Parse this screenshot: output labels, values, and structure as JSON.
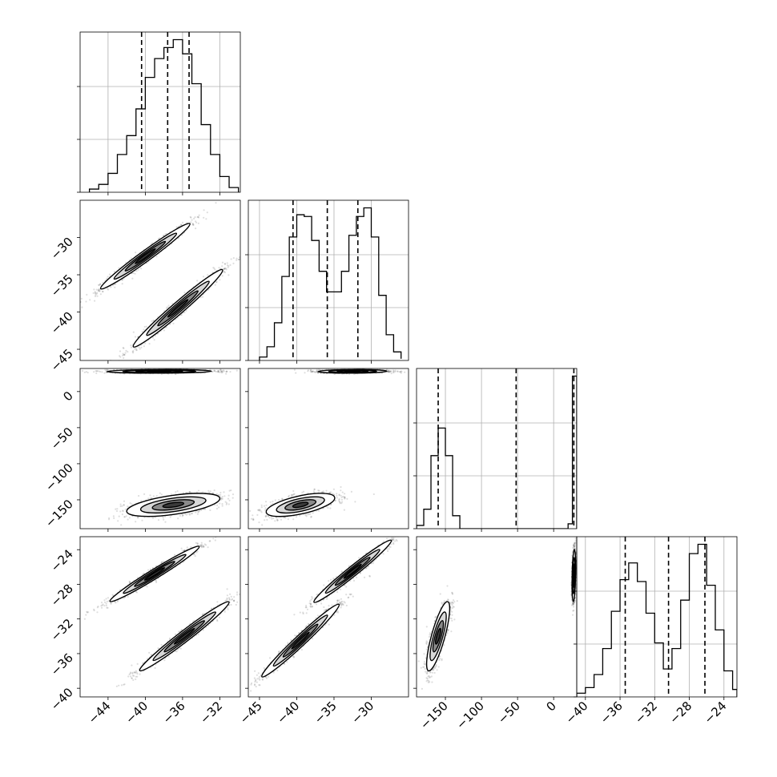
{
  "chart_data": {
    "type": "corner",
    "title": "",
    "grid": true,
    "variables": [
      {
        "name": "",
        "range": [
          -47,
          -29.8
        ],
        "ticks": [
          -44,
          -40,
          -36,
          -32
        ],
        "tick_labels": [
          "−44",
          "−40",
          "−36",
          "−32"
        ],
        "quantiles": [
          -40.4,
          -37.6,
          -35.3
        ]
      },
      {
        "name": "",
        "range": [
          -46.5,
          -25
        ],
        "ticks": [
          -45,
          -40,
          -35,
          -30
        ],
        "tick_labels": [
          "−45",
          "−40",
          "−35",
          "−30"
        ],
        "quantiles": [
          -40.5,
          -35.9,
          -31.8
        ]
      },
      {
        "name": "",
        "range": [
          -190,
          32
        ],
        "ticks": [
          -150,
          -100,
          -50,
          0
        ],
        "tick_labels": [
          "−150",
          "−100",
          "−50",
          "0"
        ],
        "quantiles": [
          -160,
          -52,
          28
        ]
      },
      {
        "name": "",
        "range": [
          -41,
          -22.5
        ],
        "ticks": [
          -40,
          -36,
          -32,
          -28,
          -24
        ],
        "tick_labels": [
          "−40",
          "−36",
          "−32",
          "−28",
          "−24"
        ],
        "quantiles": [
          -35.4,
          -30.4,
          -26.2
        ]
      }
    ],
    "histograms": [
      {
        "variable": 0,
        "bin_edges": [
          -46,
          -45,
          -44,
          -43,
          -42,
          -41,
          -40,
          -39,
          -38,
          -37,
          -36,
          -35,
          -34,
          -33,
          -32,
          -31,
          -30
        ],
        "counts": [
          2,
          5,
          12,
          24,
          36,
          53,
          73,
          85,
          92,
          97,
          88,
          69,
          43,
          24,
          10,
          3
        ]
      },
      {
        "variable": 1,
        "bin_edges": [
          -45,
          -44,
          -43,
          -42,
          -41,
          -40,
          -39,
          -38,
          -37,
          -36,
          -35,
          -34,
          -33,
          -32,
          -31,
          -30,
          -29,
          -28,
          -27,
          -26
        ],
        "counts": [
          2,
          8,
          22,
          49,
          72,
          85,
          84,
          70,
          52,
          40,
          40,
          52,
          73,
          84,
          89,
          72,
          38,
          15,
          5,
          1
        ]
      },
      {
        "variable": 2,
        "bin_edges": [
          -190,
          -180,
          -170,
          -160,
          -150,
          -140,
          -130,
          20,
          26,
          32
        ],
        "counts": [
          2,
          12,
          45,
          62,
          45,
          8,
          0,
          3,
          94
        ]
      },
      {
        "variable": 3,
        "bin_edges": [
          -41,
          -40,
          -39,
          -38,
          -37,
          -36,
          -35,
          -34,
          -33,
          -32,
          -31,
          -30,
          -29,
          -28,
          -27,
          -26,
          -25,
          -24,
          -23,
          -22.5
        ],
        "counts": [
          2,
          5,
          12,
          26,
          46,
          63,
          72,
          62,
          45,
          29,
          15,
          26,
          52,
          77,
          82,
          60,
          36,
          14,
          4
        ]
      }
    ],
    "pairs": [
      {
        "x": 0,
        "y": 1,
        "modes": [
          {
            "cx": -40.0,
            "cy": -32.5,
            "sx": 2.4,
            "sy": 2.2,
            "rho": 0.98
          },
          {
            "cx": -36.5,
            "cy": -39.5,
            "sx": 2.4,
            "sy": 2.6,
            "rho": 0.98
          }
        ]
      },
      {
        "x": 0,
        "y": 2,
        "modes": [
          {
            "cx": -38.5,
            "cy": 28,
            "sx": 2.8,
            "sy": 1.2,
            "rho": 0.1
          },
          {
            "cx": -37.0,
            "cy": -157,
            "sx": 2.5,
            "sy": 8,
            "rho": 0.55
          }
        ]
      },
      {
        "x": 0,
        "y": 3,
        "modes": [
          {
            "cx": -39.0,
            "cy": -26.8,
            "sx": 2.4,
            "sy": 1.6,
            "rho": 0.98
          },
          {
            "cx": -35.8,
            "cy": -34.0,
            "sx": 2.4,
            "sy": 2.0,
            "rho": 0.98
          }
        ]
      },
      {
        "x": 1,
        "y": 2,
        "modes": [
          {
            "cx": -32.5,
            "cy": 28,
            "sx": 2.3,
            "sy": 1.2,
            "rho": 0.1
          },
          {
            "cx": -39.5,
            "cy": -157,
            "sx": 2.3,
            "sy": 8,
            "rho": 0.6
          }
        ]
      },
      {
        "x": 1,
        "y": 3,
        "modes": [
          {
            "cx": -32.5,
            "cy": -26.5,
            "sx": 2.6,
            "sy": 1.8,
            "rho": 0.98
          },
          {
            "cx": -39.5,
            "cy": -34.5,
            "sx": 2.6,
            "sy": 2.1,
            "rho": 0.98
          }
        ]
      },
      {
        "x": 2,
        "y": 3,
        "modes": [
          {
            "cx": 28,
            "cy": -27.0,
            "sx": 1.2,
            "sy": 1.5,
            "rho": 0.3
          },
          {
            "cx": -160,
            "cy": -34.0,
            "sx": 8,
            "sy": 2.0,
            "rho": 0.8
          }
        ]
      }
    ]
  }
}
